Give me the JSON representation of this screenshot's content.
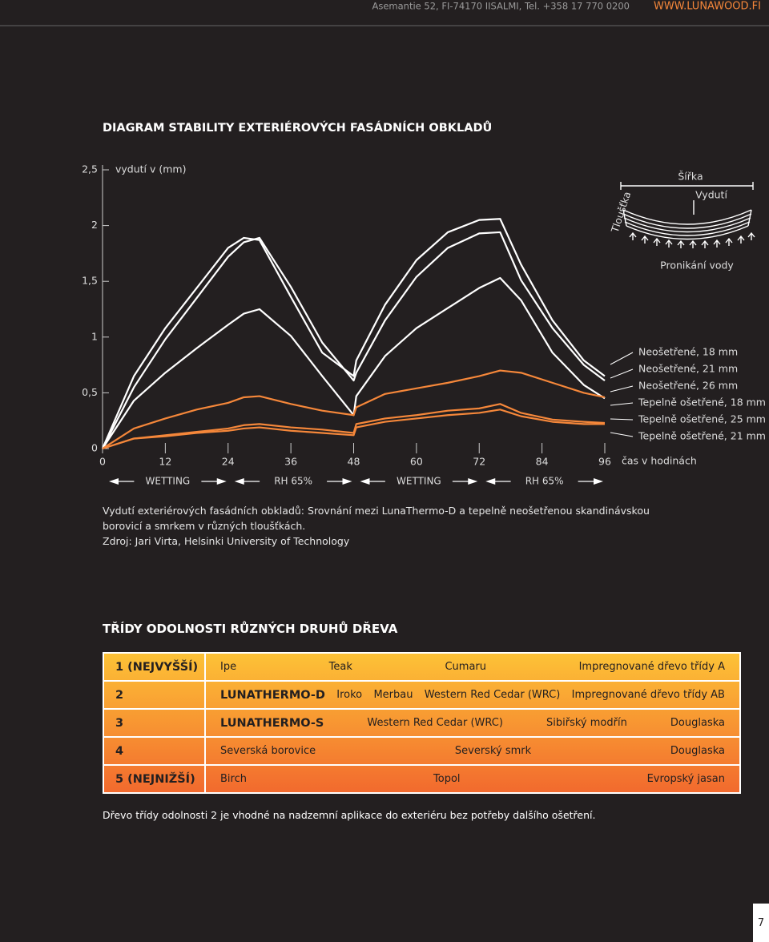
{
  "header": {
    "address": "Asemantie 52, FI-74170 IISALMI, Tel. +358 17 770 0200",
    "web": "WWW.LUNAWOOD.FI"
  },
  "chart_data": {
    "type": "line",
    "title": "DIAGRAM STABILITY EXTERIÉROVÝCH FASÁDNÍCH OBKLADŮ",
    "y_label": "vydutí v (mm)",
    "x_label": "čas v hodinách",
    "x": [
      0,
      6,
      12,
      18,
      24,
      27,
      30,
      36,
      42,
      48,
      48.5,
      54,
      60,
      66,
      72,
      76,
      80,
      86,
      92,
      96
    ],
    "xlim": [
      0,
      96
    ],
    "xticks": [
      0,
      12,
      24,
      36,
      48,
      60,
      72,
      84,
      96
    ],
    "ylim": [
      0,
      2.5
    ],
    "yticks": [
      0,
      {
        "value": 0.5,
        "label": "0,5"
      },
      1,
      {
        "value": 1.5,
        "label": "1,5"
      },
      2,
      {
        "value": 2.5,
        "label": "2,5"
      }
    ],
    "phases": [
      "WETTING",
      "RH 65%",
      "WETTING",
      "RH 65%"
    ],
    "legend": "right",
    "series": [
      {
        "name": "Neošetřené, 18 mm",
        "color": "#ffffff",
        "values": [
          0,
          0.65,
          1.08,
          1.44,
          1.8,
          1.89,
          1.87,
          1.36,
          0.86,
          0.65,
          0.79,
          1.29,
          1.69,
          1.94,
          2.05,
          2.06,
          1.65,
          1.15,
          0.79,
          0.65
        ]
      },
      {
        "name": "Neošetřené, 21 mm",
        "color": "#ffffff",
        "values": [
          0,
          0.55,
          0.98,
          1.35,
          1.72,
          1.85,
          1.89,
          1.45,
          0.95,
          0.61,
          0.68,
          1.15,
          1.54,
          1.8,
          1.93,
          1.94,
          1.51,
          1.08,
          0.75,
          0.61
        ]
      },
      {
        "name": "Neošetřené, 26 mm",
        "color": "#ffffff",
        "values": [
          0,
          0.43,
          0.68,
          0.9,
          1.11,
          1.21,
          1.25,
          1.01,
          0.65,
          0.3,
          0.47,
          0.83,
          1.08,
          1.26,
          1.44,
          1.53,
          1.33,
          0.86,
          0.57,
          0.45
        ]
      },
      {
        "name": "Tepelně ošetřené, 18 mm",
        "color": "#f5873a",
        "values": [
          0,
          0.18,
          0.27,
          0.35,
          0.41,
          0.46,
          0.47,
          0.4,
          0.34,
          0.3,
          0.37,
          0.49,
          0.54,
          0.59,
          0.65,
          0.7,
          0.68,
          0.59,
          0.5,
          0.46
        ]
      },
      {
        "name": "Tepelně ošetřené, 25 mm",
        "color": "#f5873a",
        "values": [
          0,
          0.09,
          0.12,
          0.15,
          0.18,
          0.21,
          0.22,
          0.19,
          0.17,
          0.14,
          0.22,
          0.27,
          0.3,
          0.34,
          0.36,
          0.4,
          0.32,
          0.26,
          0.24,
          0.23
        ]
      },
      {
        "name": "Tepelně ošetřené, 21 mm",
        "color": "#f5873a",
        "values": [
          0,
          0.09,
          0.11,
          0.14,
          0.16,
          0.18,
          0.19,
          0.16,
          0.14,
          0.12,
          0.19,
          0.24,
          0.27,
          0.3,
          0.32,
          0.35,
          0.29,
          0.24,
          0.22,
          0.22
        ]
      }
    ]
  },
  "diagram": {
    "width": "Šířka",
    "cup": "Vydutí",
    "thickness": "Tloušťka",
    "water": "Pronikání vody"
  },
  "caption": {
    "text": "Vydutí exteriérových fasádních obkladů: Srovnání mezi LunaThermo-D a tepelně neošetřenou skandinávskou borovicí a smrkem v různých tloušťkách.",
    "source": "Zdroj: Jari Virta, Helsinki University of Technology"
  },
  "table": {
    "title": "TŘÍDY ODOLNOSTI RŮZNÝCH DRUHŮ DŘEVA",
    "rows": [
      {
        "class": "1 (NEJVYŠŠÍ)",
        "items": [
          "Ipe",
          "Teak",
          "Cumaru",
          "Impregnované dřevo třídy A"
        ]
      },
      {
        "class": "2",
        "product": "LUNATHERMO-D",
        "items": [
          "Iroko",
          "Merbau",
          "Western Red Cedar (WRC)",
          "Impregnované dřevo třídy AB"
        ]
      },
      {
        "class": "3",
        "product": "LUNATHERMO-S",
        "items": [
          "Western Red Cedar (WRC)",
          "Sibiřský modřín",
          "Douglaska"
        ]
      },
      {
        "class": "4",
        "items": [
          "Severská borovice",
          "Severský smrk",
          "Douglaska"
        ]
      },
      {
        "class": "5 (NEJNIŽŠÍ)",
        "items": [
          "Birch",
          "Topol",
          "Evropský jasan"
        ]
      }
    ],
    "note": "Dřevo třídy odolnosti 2 je vhodné na nadzemní aplikace do exteriéru bez potřeby dalšího ošetření."
  },
  "page_number": "7"
}
